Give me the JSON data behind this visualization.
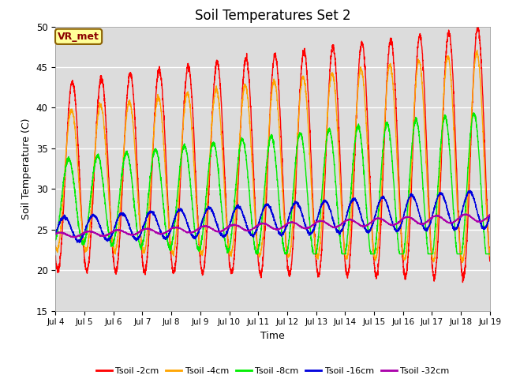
{
  "title": "Soil Temperatures Set 2",
  "xlabel": "Time",
  "ylabel": "Soil Temperature (C)",
  "xlim": [
    0,
    15
  ],
  "ylim": [
    15,
    50
  ],
  "yticks": [
    15,
    20,
    25,
    30,
    35,
    40,
    45,
    50
  ],
  "xtick_labels": [
    "Jul 4",
    "Jul 5",
    "Jul 6",
    "Jul 7",
    "Jul 8",
    "Jul 9",
    "Jul 10",
    "Jul 11",
    "Jul 12",
    "Jul 13",
    "Jul 14",
    "Jul 15",
    "Jul 16",
    "Jul 17",
    "Jul 18",
    "Jul 19"
  ],
  "colors": {
    "Tsoil -2cm": "#ff0000",
    "Tsoil -4cm": "#ffa500",
    "Tsoil -8cm": "#00ee00",
    "Tsoil -16cm": "#0000dd",
    "Tsoil -32cm": "#aa00aa"
  },
  "annotation_text": "VR_met",
  "bg_color": "#dcdcdc",
  "fig_color": "#ffffff",
  "linewidth": 1.0,
  "n_points": 3600
}
